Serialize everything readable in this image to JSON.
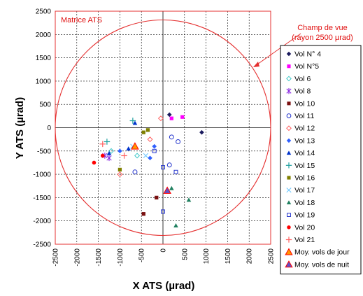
{
  "chart_data": {
    "type": "scatter",
    "xlabel": "X ATS (µrad)",
    "ylabel": "Y ATS (µrad)",
    "xlim": [
      -2500,
      2500
    ],
    "ylim": [
      -2500,
      2500
    ],
    "xticks": [
      -2500,
      -2000,
      -1500,
      -1000,
      -500,
      0,
      500,
      1000,
      1500,
      2000,
      2500
    ],
    "yticks": [
      -2500,
      -2000,
      -1500,
      -1000,
      -500,
      0,
      500,
      1000,
      1500,
      2000,
      2500
    ],
    "grid": true,
    "legend_position": "right",
    "annotations": {
      "matrix_label": "Matrice ATS",
      "field_label_line1": "Champ de vue",
      "field_label_line2": "(rayon 2500 µrad)"
    },
    "field_of_view": {
      "center": [
        0,
        0
      ],
      "radius": 2500,
      "color": "#e53030"
    },
    "matrix_border_color": "#e53030",
    "series": [
      {
        "name": "Vol N° 4",
        "marker": "diamond",
        "color": "#1a1a5e",
        "points": [
          [
            150,
            280
          ],
          [
            900,
            -100
          ]
        ]
      },
      {
        "name": "Vol N°5",
        "marker": "square",
        "color": "#ff00ff",
        "points": [
          [
            200,
            200
          ],
          [
            450,
            230
          ]
        ]
      },
      {
        "name": "Vol 6",
        "marker": "diamond-open",
        "color": "#40c8c8",
        "points": [
          [
            -1200,
            -500
          ],
          [
            -600,
            -600
          ]
        ]
      },
      {
        "name": "Vol 8",
        "marker": "star",
        "color": "#8a2be2",
        "points": [
          [
            -1350,
            -600
          ],
          [
            -1250,
            -650
          ]
        ]
      },
      {
        "name": "Vol 10",
        "marker": "square",
        "color": "#7a1010",
        "points": [
          [
            -450,
            -1850
          ],
          [
            -150,
            -1500
          ]
        ]
      },
      {
        "name": "Vol 11",
        "marker": "circle-open",
        "color": "#2233cc",
        "points": [
          [
            200,
            -200
          ],
          [
            150,
            -800
          ],
          [
            350,
            -300
          ],
          [
            -650,
            -950
          ]
        ]
      },
      {
        "name": "Vol 12",
        "marker": "diamond-open",
        "color": "#ff6060",
        "points": [
          [
            -50,
            200
          ],
          [
            -1000,
            -1000
          ],
          [
            -300,
            -250
          ]
        ]
      },
      {
        "name": "Vol 13",
        "marker": "diamond",
        "color": "#3060ff",
        "points": [
          [
            -1000,
            -500
          ],
          [
            -300,
            -650
          ],
          [
            -200,
            -400
          ]
        ]
      },
      {
        "name": "Vol 14",
        "marker": "triangle",
        "color": "#0033cc",
        "points": [
          [
            -1250,
            -550
          ],
          [
            -650,
            100
          ],
          [
            -800,
            -450
          ]
        ]
      },
      {
        "name": "Vol 15",
        "marker": "plus",
        "color": "#20a0a0",
        "points": [
          [
            -1300,
            -300
          ],
          [
            -700,
            150
          ]
        ]
      },
      {
        "name": "Vol 16",
        "marker": "square",
        "color": "#808000",
        "points": [
          [
            -1000,
            -900
          ],
          [
            -450,
            -100
          ],
          [
            -350,
            -50
          ]
        ]
      },
      {
        "name": "Vol 17",
        "marker": "x",
        "color": "#70c8ff",
        "points": [
          [
            -400,
            -600
          ],
          [
            -700,
            -400
          ]
        ]
      },
      {
        "name": "Vol 18",
        "marker": "triangle",
        "color": "#208060",
        "points": [
          [
            600,
            -1550
          ],
          [
            300,
            -2100
          ],
          [
            200,
            -1300
          ]
        ]
      },
      {
        "name": "Vol 19",
        "marker": "square-open",
        "color": "#2233cc",
        "points": [
          [
            0,
            -1800
          ],
          [
            0,
            -850
          ],
          [
            300,
            -950
          ],
          [
            -200,
            -500
          ]
        ]
      },
      {
        "name": "Vol 20",
        "marker": "circle",
        "color": "#ff0000",
        "points": [
          [
            -1600,
            -750
          ],
          [
            -1400,
            -600
          ]
        ]
      },
      {
        "name": "Vol 21",
        "marker": "plus",
        "color": "#ff6060",
        "points": [
          [
            -1400,
            -350
          ],
          [
            -900,
            -600
          ]
        ]
      },
      {
        "name": "Moy. vols de jour",
        "marker": "triangle-big",
        "color": "#ff9900",
        "edge": "#ff0000",
        "points": [
          [
            -650,
            -400
          ]
        ]
      },
      {
        "name": "Moy. vols de nuit",
        "marker": "triangle-big",
        "color": "#6050c8",
        "edge": "#ff0000",
        "points": [
          [
            100,
            -1350
          ]
        ]
      }
    ]
  }
}
